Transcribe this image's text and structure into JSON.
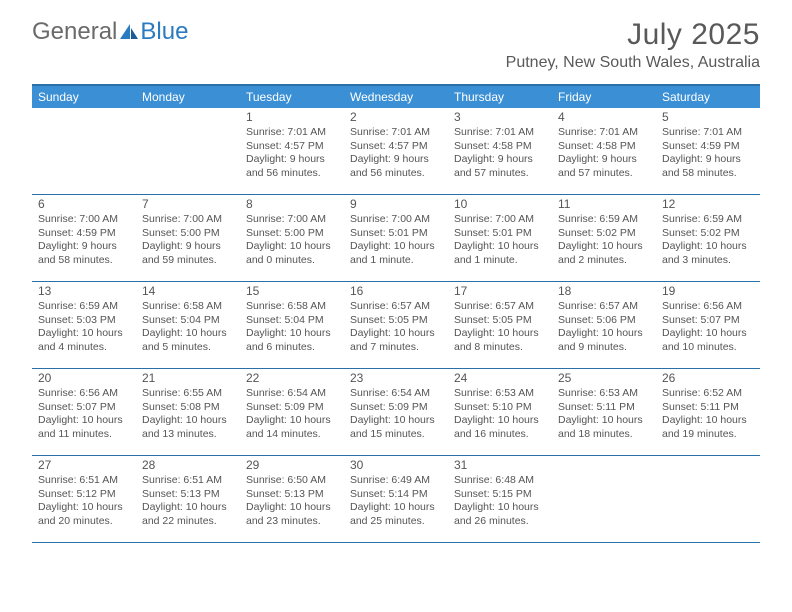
{
  "brand": {
    "part1": "General",
    "part2": "Blue"
  },
  "title": {
    "month": "July 2025",
    "location": "Putney, New South Wales, Australia"
  },
  "colors": {
    "header_bar": "#3b8fd4",
    "rule": "#2a6fa8",
    "logo_blue": "#2a7bc0",
    "text": "#555555"
  },
  "days_of_week": [
    "Sunday",
    "Monday",
    "Tuesday",
    "Wednesday",
    "Thursday",
    "Friday",
    "Saturday"
  ],
  "weeks": [
    [
      null,
      null,
      {
        "n": "1",
        "sr": "7:01 AM",
        "ss": "4:57 PM",
        "dl": "9 hours and 56 minutes."
      },
      {
        "n": "2",
        "sr": "7:01 AM",
        "ss": "4:57 PM",
        "dl": "9 hours and 56 minutes."
      },
      {
        "n": "3",
        "sr": "7:01 AM",
        "ss": "4:58 PM",
        "dl": "9 hours and 57 minutes."
      },
      {
        "n": "4",
        "sr": "7:01 AM",
        "ss": "4:58 PM",
        "dl": "9 hours and 57 minutes."
      },
      {
        "n": "5",
        "sr": "7:01 AM",
        "ss": "4:59 PM",
        "dl": "9 hours and 58 minutes."
      }
    ],
    [
      {
        "n": "6",
        "sr": "7:00 AM",
        "ss": "4:59 PM",
        "dl": "9 hours and 58 minutes."
      },
      {
        "n": "7",
        "sr": "7:00 AM",
        "ss": "5:00 PM",
        "dl": "9 hours and 59 minutes."
      },
      {
        "n": "8",
        "sr": "7:00 AM",
        "ss": "5:00 PM",
        "dl": "10 hours and 0 minutes."
      },
      {
        "n": "9",
        "sr": "7:00 AM",
        "ss": "5:01 PM",
        "dl": "10 hours and 1 minute."
      },
      {
        "n": "10",
        "sr": "7:00 AM",
        "ss": "5:01 PM",
        "dl": "10 hours and 1 minute."
      },
      {
        "n": "11",
        "sr": "6:59 AM",
        "ss": "5:02 PM",
        "dl": "10 hours and 2 minutes."
      },
      {
        "n": "12",
        "sr": "6:59 AM",
        "ss": "5:02 PM",
        "dl": "10 hours and 3 minutes."
      }
    ],
    [
      {
        "n": "13",
        "sr": "6:59 AM",
        "ss": "5:03 PM",
        "dl": "10 hours and 4 minutes."
      },
      {
        "n": "14",
        "sr": "6:58 AM",
        "ss": "5:04 PM",
        "dl": "10 hours and 5 minutes."
      },
      {
        "n": "15",
        "sr": "6:58 AM",
        "ss": "5:04 PM",
        "dl": "10 hours and 6 minutes."
      },
      {
        "n": "16",
        "sr": "6:57 AM",
        "ss": "5:05 PM",
        "dl": "10 hours and 7 minutes."
      },
      {
        "n": "17",
        "sr": "6:57 AM",
        "ss": "5:05 PM",
        "dl": "10 hours and 8 minutes."
      },
      {
        "n": "18",
        "sr": "6:57 AM",
        "ss": "5:06 PM",
        "dl": "10 hours and 9 minutes."
      },
      {
        "n": "19",
        "sr": "6:56 AM",
        "ss": "5:07 PM",
        "dl": "10 hours and 10 minutes."
      }
    ],
    [
      {
        "n": "20",
        "sr": "6:56 AM",
        "ss": "5:07 PM",
        "dl": "10 hours and 11 minutes."
      },
      {
        "n": "21",
        "sr": "6:55 AM",
        "ss": "5:08 PM",
        "dl": "10 hours and 13 minutes."
      },
      {
        "n": "22",
        "sr": "6:54 AM",
        "ss": "5:09 PM",
        "dl": "10 hours and 14 minutes."
      },
      {
        "n": "23",
        "sr": "6:54 AM",
        "ss": "5:09 PM",
        "dl": "10 hours and 15 minutes."
      },
      {
        "n": "24",
        "sr": "6:53 AM",
        "ss": "5:10 PM",
        "dl": "10 hours and 16 minutes."
      },
      {
        "n": "25",
        "sr": "6:53 AM",
        "ss": "5:11 PM",
        "dl": "10 hours and 18 minutes."
      },
      {
        "n": "26",
        "sr": "6:52 AM",
        "ss": "5:11 PM",
        "dl": "10 hours and 19 minutes."
      }
    ],
    [
      {
        "n": "27",
        "sr": "6:51 AM",
        "ss": "5:12 PM",
        "dl": "10 hours and 20 minutes."
      },
      {
        "n": "28",
        "sr": "6:51 AM",
        "ss": "5:13 PM",
        "dl": "10 hours and 22 minutes."
      },
      {
        "n": "29",
        "sr": "6:50 AM",
        "ss": "5:13 PM",
        "dl": "10 hours and 23 minutes."
      },
      {
        "n": "30",
        "sr": "6:49 AM",
        "ss": "5:14 PM",
        "dl": "10 hours and 25 minutes."
      },
      {
        "n": "31",
        "sr": "6:48 AM",
        "ss": "5:15 PM",
        "dl": "10 hours and 26 minutes."
      },
      null,
      null
    ]
  ],
  "labels": {
    "sunrise": "Sunrise:",
    "sunset": "Sunset:",
    "daylight": "Daylight:"
  }
}
